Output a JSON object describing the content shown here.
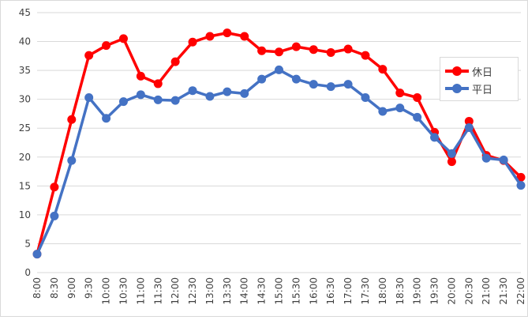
{
  "chart_data": {
    "type": "line",
    "categories": [
      "8:00",
      "8:30",
      "9:00",
      "9:30",
      "10:00",
      "10:30",
      "11:00",
      "11:30",
      "12:00",
      "12:30",
      "13:00",
      "13:30",
      "14:00",
      "14:30",
      "15:00",
      "15:30",
      "16:00",
      "16:30",
      "17:00",
      "17:30",
      "18:00",
      "18:30",
      "19:00",
      "19:30",
      "20:00",
      "20:30",
      "21:00",
      "21:30",
      "22:00"
    ],
    "ylim": [
      0,
      45
    ],
    "yticks": [
      0,
      5,
      10,
      15,
      20,
      25,
      30,
      35,
      40,
      45
    ],
    "grid": true,
    "legend_position": "right",
    "series": [
      {
        "name": "休日",
        "color": "#ff0000",
        "values": [
          3.2,
          14.8,
          26.5,
          37.6,
          39.3,
          40.5,
          34.0,
          32.7,
          36.5,
          39.9,
          40.9,
          41.5,
          40.9,
          38.4,
          38.2,
          39.1,
          38.6,
          38.1,
          38.7,
          37.6,
          35.2,
          31.1,
          30.3,
          24.3,
          19.2,
          26.2,
          20.3,
          19.4,
          16.5
        ]
      },
      {
        "name": "平日",
        "color": "#4472c4",
        "values": [
          3.2,
          9.8,
          19.4,
          30.3,
          26.7,
          29.6,
          30.8,
          29.9,
          29.8,
          31.5,
          30.5,
          31.3,
          31.0,
          33.5,
          35.1,
          33.5,
          32.6,
          32.2,
          32.6,
          30.3,
          27.9,
          28.5,
          26.9,
          23.4,
          20.6,
          25.1,
          19.8,
          19.5,
          15.1
        ]
      }
    ]
  }
}
